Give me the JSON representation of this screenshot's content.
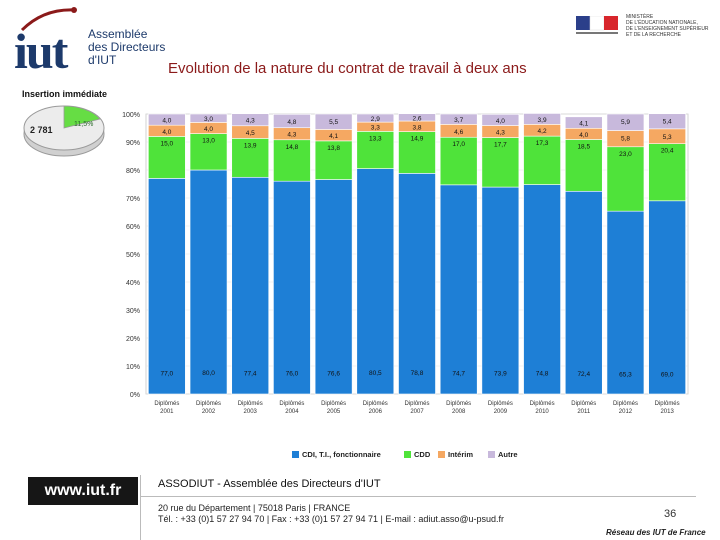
{
  "header": {
    "logo_mark": "iut",
    "logo_line1": "Assemblée",
    "logo_line2": "des Directeurs",
    "logo_line3": "d'IUT",
    "ministry_lines": [
      "MINISTÈRE",
      "DE L'ÉDUCATION NATIONALE,",
      "DE L'ENSEIGNEMENT SUPÉRIEUR",
      "ET DE LA RECHERCHE"
    ],
    "title": "Evolution de la nature du contrat de travail à deux ans"
  },
  "insertion": {
    "label": "Insertion immédiate",
    "count": "2 781",
    "percent": "11,5%"
  },
  "chart_data": {
    "type": "bar",
    "stacked": true,
    "title": "Evolution de la nature du contrat de travail à deux ans",
    "categories": [
      "Diplômés 2001",
      "Diplômés 2002",
      "Diplômés 2003",
      "Diplômés 2004",
      "Diplômés 2005",
      "Diplômés 2006",
      "Diplômés 2007",
      "Diplômés 2008",
      "Diplômés 2009",
      "Diplômés 2010",
      "Diplômés 2011",
      "Diplômés 2012",
      "Diplômés 2013"
    ],
    "y_ticks": [
      "100%",
      "90%",
      "80%",
      "70%",
      "60%",
      "50%",
      "40%",
      "30%",
      "20%",
      "10%",
      "0%"
    ],
    "ylim": [
      0,
      100
    ],
    "legend_position": "bottom",
    "series": [
      {
        "name": "CDI, T.I., fonctionnaire",
        "color": "#1e7fd6",
        "values": [
          77.0,
          80.0,
          77.4,
          76.0,
          76.6,
          80.5,
          78.8,
          74.7,
          73.9,
          74.8,
          72.4,
          65.3,
          69.0
        ],
        "labels": [
          "77,0",
          "80,0",
          "77,4",
          "76,0",
          "76,6",
          "80,5",
          "78,8",
          "74,7",
          "73,9",
          "74,8",
          "72,4",
          "65,3",
          "69,0"
        ]
      },
      {
        "name": "CDD",
        "color": "#4fe33a",
        "values": [
          15.0,
          13.0,
          13.9,
          14.8,
          13.8,
          13.3,
          14.9,
          17.0,
          17.7,
          17.3,
          18.5,
          23.0,
          20.4
        ],
        "labels": [
          "15,0",
          "13,0",
          "13,9",
          "14,8",
          "13,8",
          "13,3",
          "14,9",
          "17,0",
          "17,7",
          "17,3",
          "18,5",
          "23,0",
          "20,4"
        ]
      },
      {
        "name": "Intérim",
        "color": "#f5a862",
        "values": [
          4.0,
          4.0,
          4.5,
          4.3,
          4.1,
          3.3,
          3.8,
          4.6,
          4.3,
          4.2,
          4.0,
          5.8,
          5.3
        ],
        "labels": [
          "4,0",
          "4,0",
          "4,5",
          "4,3",
          "4,1",
          "3,3",
          "3,8",
          "4,6",
          "4,3",
          "4,2",
          "4,0",
          "5,8",
          "5,3"
        ]
      },
      {
        "name": "Autre",
        "color": "#c8b9dc",
        "values": [
          4.0,
          3.0,
          4.3,
          4.8,
          5.5,
          2.9,
          2.6,
          3.7,
          4.0,
          3.9,
          4.1,
          5.9,
          5.4
        ],
        "labels": [
          "4,0",
          "3,0",
          "4,3",
          "4,8",
          "5,5",
          "2,9",
          "2,6",
          "3,7",
          "4,0",
          "3,9",
          "4,1",
          "5,9",
          "5,4"
        ]
      }
    ]
  },
  "footer": {
    "website": "www.iut.fr",
    "association": "ASSODIUT - Assemblée des Directeurs d'IUT",
    "address": "20 rue du Département | 75018 Paris | FRANCE",
    "contact": "Tél. : +33 (0)1 57 27 94 70 | Fax : +33 (0)1 57 27 94 71 | E-mail : adiut.asso@u-psud.fr",
    "page_number": "36",
    "network": "Réseau des IUT de France"
  }
}
